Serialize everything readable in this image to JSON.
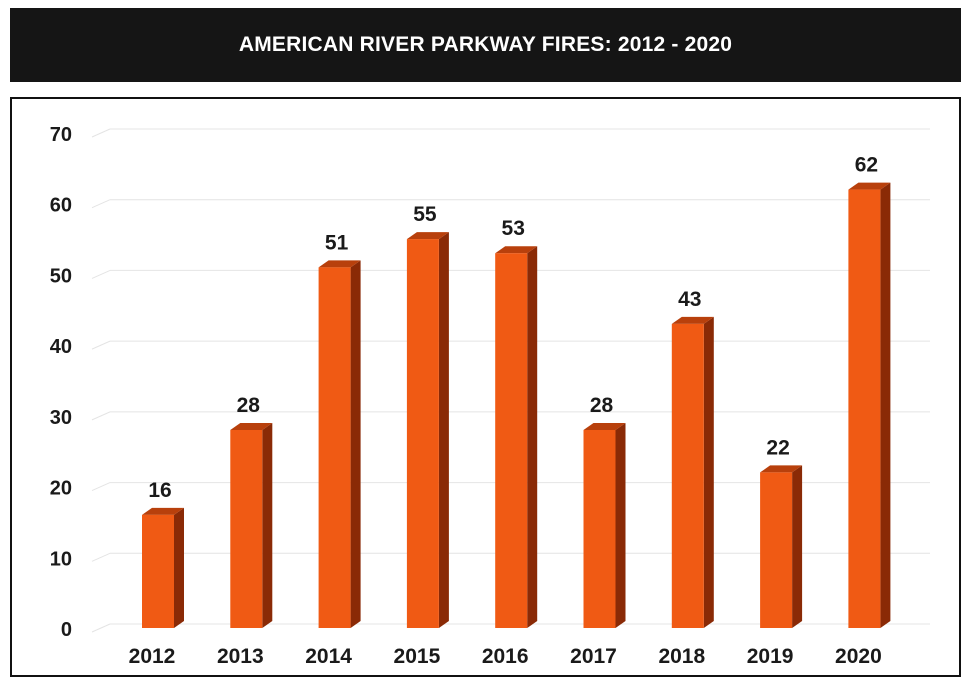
{
  "header": {
    "title": "AMERICAN RIVER PARKWAY FIRES:  2012 - 2020"
  },
  "colors": {
    "bar_front": "#f05a14",
    "bar_side": "#8a2a06",
    "bar_top": "#b8400c",
    "grid": "#e4e4e4",
    "title_bg": "#151515"
  },
  "chart_data": {
    "type": "bar",
    "title": "AMERICAN RIVER PARKWAY FIRES:  2012 - 2020",
    "xlabel": "",
    "ylabel": "",
    "categories": [
      "2012",
      "2013",
      "2014",
      "2015",
      "2016",
      "2017",
      "2018",
      "2019",
      "2020"
    ],
    "values": [
      16,
      28,
      51,
      55,
      53,
      28,
      43,
      22,
      62
    ],
    "yticks": [
      "0",
      "10",
      "20",
      "30",
      "40",
      "50",
      "60",
      "70"
    ],
    "ylim": [
      0,
      70
    ],
    "grid": true,
    "legend": "none",
    "style": "3d-column"
  }
}
